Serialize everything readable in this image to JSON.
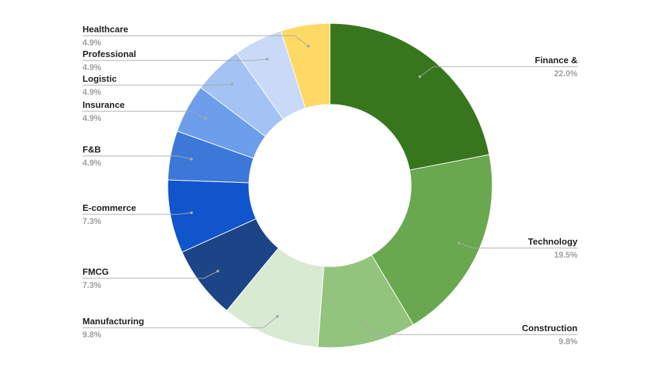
{
  "chart_data": {
    "type": "pie",
    "donut": true,
    "title": "",
    "slices": [
      {
        "label": "Finance &",
        "value": 22.0,
        "display": "22.0%",
        "color": "#38761d"
      },
      {
        "label": "Technology",
        "value": 19.5,
        "display": "19.5%",
        "color": "#6aa84f"
      },
      {
        "label": "Construction",
        "value": 9.8,
        "display": "9.8%",
        "color": "#93c47d"
      },
      {
        "label": "Manufacturing",
        "value": 9.8,
        "display": "9.8%",
        "color": "#d9ead3"
      },
      {
        "label": "FMCG",
        "value": 7.3,
        "display": "7.3%",
        "color": "#1c4587"
      },
      {
        "label": "E-commerce",
        "value": 7.3,
        "display": "7.3%",
        "color": "#1155cc"
      },
      {
        "label": "F&B",
        "value": 4.9,
        "display": "4.9%",
        "color": "#3c78d8"
      },
      {
        "label": "Insurance",
        "value": 4.9,
        "display": "4.9%",
        "color": "#6d9eeb"
      },
      {
        "label": "Logistic",
        "value": 4.9,
        "display": "4.9%",
        "color": "#a4c2f4"
      },
      {
        "label": "Professional",
        "value": 4.9,
        "display": "4.9%",
        "color": "#c9daf8"
      },
      {
        "label": "Healthcare",
        "value": 4.9,
        "display": "4.9%",
        "color": "#ffd966"
      }
    ],
    "legend": "none",
    "label_style": "leader-lines"
  }
}
